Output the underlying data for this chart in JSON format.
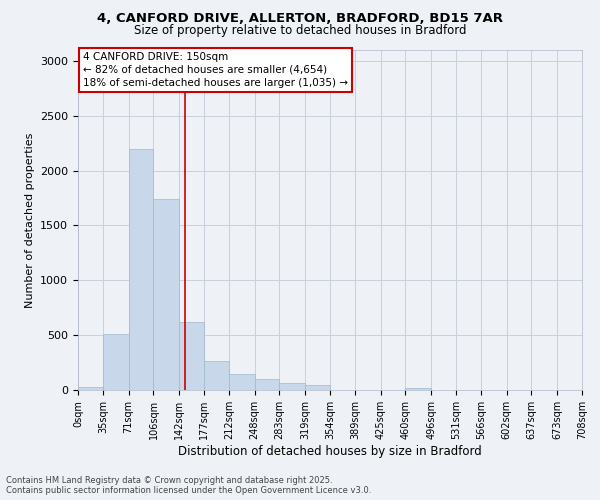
{
  "title_line1": "4, CANFORD DRIVE, ALLERTON, BRADFORD, BD15 7AR",
  "title_line2": "Size of property relative to detached houses in Bradford",
  "xlabel": "Distribution of detached houses by size in Bradford",
  "ylabel": "Number of detached properties",
  "bar_color": "#c8d8ea",
  "bar_edge_color": "#a0b8cc",
  "vline_color": "#cc0000",
  "vline_x": 150,
  "annotation_title": "4 CANFORD DRIVE: 150sqm",
  "annotation_line1": "← 82% of detached houses are smaller (4,654)",
  "annotation_line2": "18% of semi-detached houses are larger (1,035) →",
  "bins": [
    0,
    35,
    71,
    106,
    142,
    177,
    212,
    248,
    283,
    319,
    354,
    389,
    425,
    460,
    496,
    531,
    566,
    602,
    637,
    673,
    708
  ],
  "counts": [
    30,
    510,
    2200,
    1740,
    620,
    260,
    150,
    100,
    60,
    50,
    0,
    0,
    0,
    20,
    0,
    0,
    0,
    0,
    0,
    0
  ],
  "ylim": [
    0,
    3100
  ],
  "yticks": [
    0,
    500,
    1000,
    1500,
    2000,
    2500,
    3000
  ],
  "footer_line1": "Contains HM Land Registry data © Crown copyright and database right 2025.",
  "footer_line2": "Contains public sector information licensed under the Open Government Licence v3.0.",
  "background_color": "#eef2f7",
  "plot_background": "#eef2f7"
}
